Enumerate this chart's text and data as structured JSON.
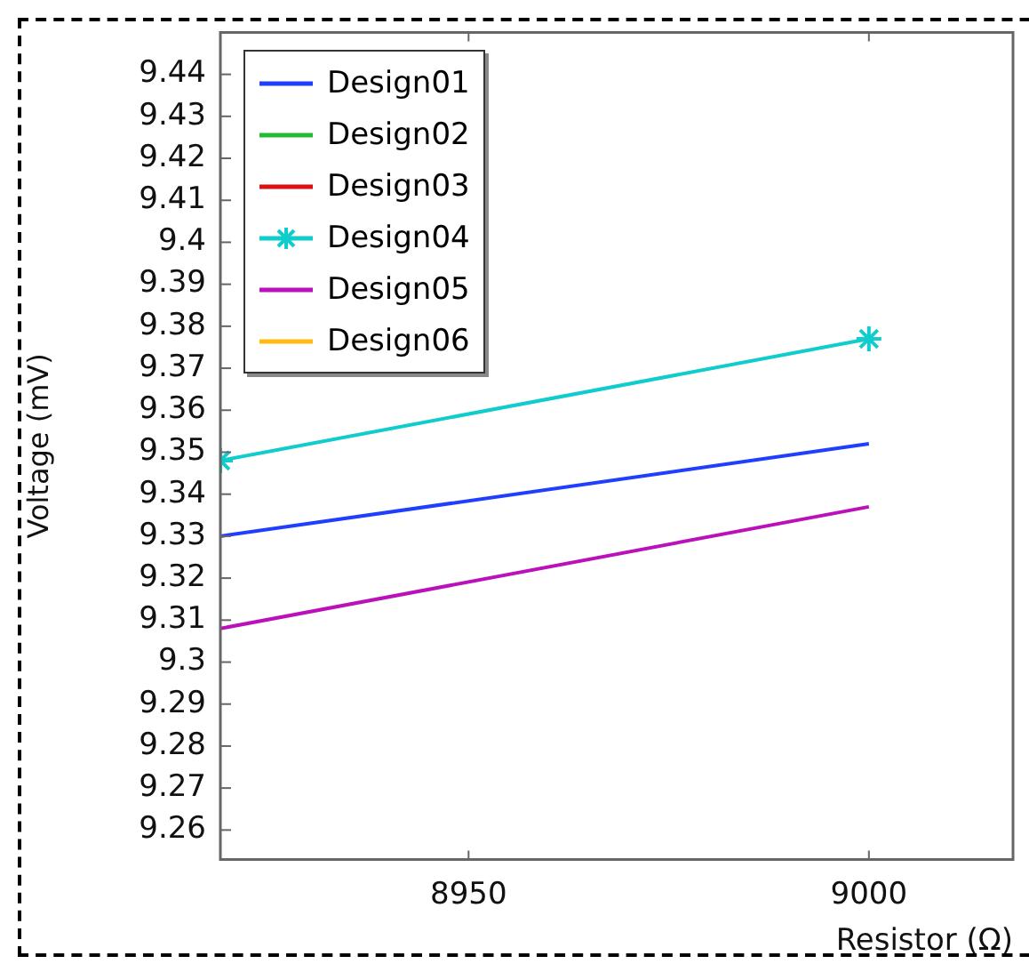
{
  "chart_data": {
    "type": "line",
    "xlabel": "Resistor (Ω)",
    "ylabel": "Voltage (mV)",
    "x": [
      8919,
      9000
    ],
    "series": [
      {
        "name": "Design01",
        "color": "#1f3fff",
        "values": [
          9.33,
          9.352
        ]
      },
      {
        "name": "Design02",
        "color": "#22bb33",
        "values": [
          null,
          null
        ]
      },
      {
        "name": "Design03",
        "color": "#dd1111",
        "values": [
          null,
          null
        ]
      },
      {
        "name": "Design04",
        "color": "#11cccc",
        "values": [
          9.348,
          9.377
        ],
        "marker": "cross"
      },
      {
        "name": "Design05",
        "color": "#bb11bb",
        "values": [
          9.308,
          9.337
        ]
      },
      {
        "name": "Design06",
        "color": "#ffbb11",
        "values": [
          null,
          null
        ]
      }
    ],
    "xlim": [
      8919,
      9018
    ],
    "xticks": [
      8950,
      9000
    ],
    "ylim": [
      9.253,
      9.45
    ],
    "yticks": [
      9.26,
      9.27,
      9.28,
      9.29,
      9.3,
      9.31,
      9.32,
      9.33,
      9.34,
      9.35,
      9.36,
      9.37,
      9.38,
      9.39,
      9.4,
      9.41,
      9.42,
      9.43,
      9.44
    ],
    "grid": false,
    "legend": "top left",
    "marker": "none",
    "line_style": "solid"
  }
}
